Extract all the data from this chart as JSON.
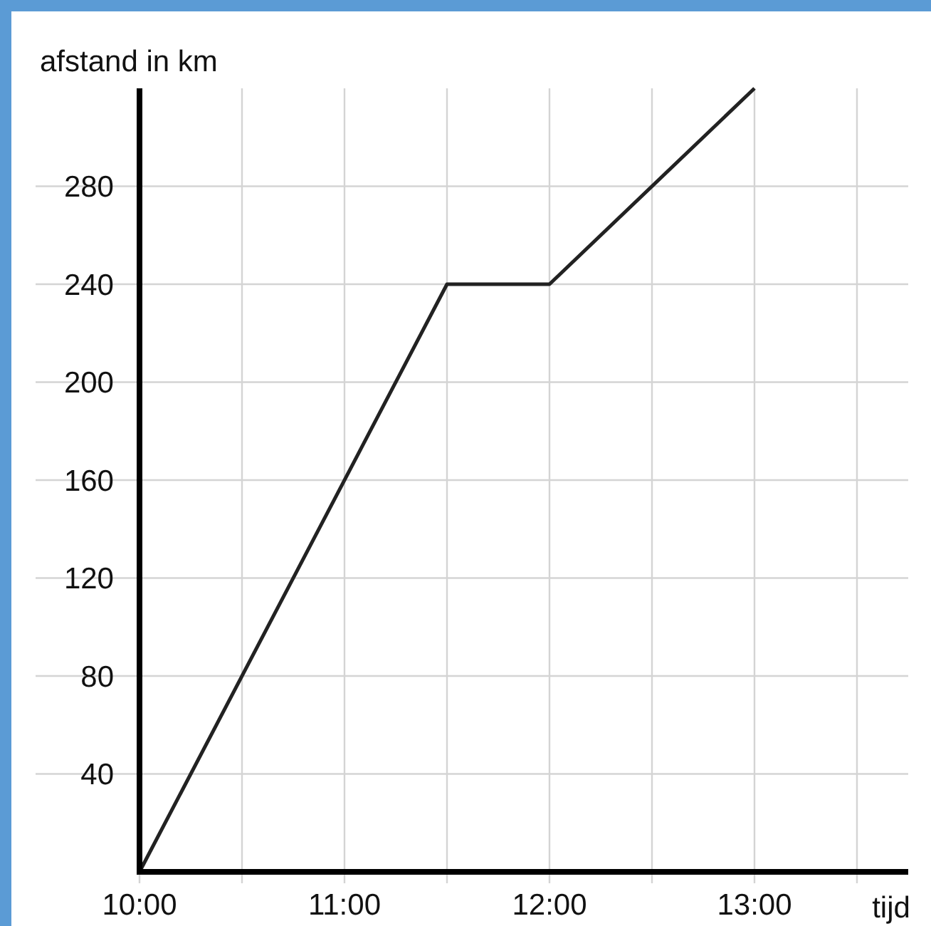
{
  "chart_data": {
    "type": "line",
    "xlabel": "tijd",
    "ylabel": "afstand in km",
    "x": [
      10,
      11.5,
      12,
      13
    ],
    "series": [
      {
        "color": "#222222",
        "values": [
          0,
          240,
          240,
          320
        ]
      }
    ],
    "xlim": [
      10,
      13.75
    ],
    "xticks": [
      {
        "value": 10,
        "label": "10:00"
      },
      {
        "value": 10.5,
        "label": null
      },
      {
        "value": 11,
        "label": "11:00"
      },
      {
        "value": 11.5,
        "label": null
      },
      {
        "value": 12,
        "label": "12:00"
      },
      {
        "value": 12.5,
        "label": null
      },
      {
        "value": 13,
        "label": "13:00"
      },
      {
        "value": 13.5,
        "label": null
      }
    ],
    "ylim": [
      0,
      320
    ],
    "yticks": [
      40,
      80,
      120,
      160,
      200,
      240,
      280
    ],
    "grid": true,
    "marker": "none",
    "line_style": "solid"
  }
}
